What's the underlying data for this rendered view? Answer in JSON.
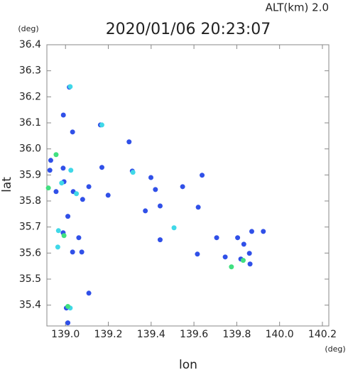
{
  "chart_data": {
    "type": "scatter",
    "title": "2020/01/06 20:23:07",
    "annotation": "ALT(km)  2.0",
    "x_label": "lon",
    "y_label": "lat",
    "x_unit": "(deg)",
    "y_unit": "(deg)",
    "xlim": [
      138.913,
      140.23
    ],
    "ylim": [
      35.32,
      36.4
    ],
    "xticks": [
      {
        "value": 139.0,
        "label": "139.0"
      },
      139.2,
      139.4,
      139.6,
      139.8,
      {
        "value": 140.0,
        "label": "140.0"
      },
      140.2
    ],
    "yticks": [
      36.4,
      36.3,
      36.2,
      36.1,
      {
        "value": 36.0,
        "label": "36.0"
      },
      35.9,
      35.8,
      35.7,
      35.6,
      35.5,
      35.4
    ],
    "series": [
      {
        "color": "#3050e8",
        "x": [
          139.018,
          138.99,
          139.033,
          139.163,
          139.297,
          139.17,
          139.312,
          138.989,
          138.931,
          138.927,
          138.993,
          139.036,
          139.08,
          139.109,
          139.199,
          139.399,
          139.42,
          139.547,
          139.638,
          139.62,
          139.373,
          139.442,
          139.442,
          139.706,
          139.616,
          139.804,
          139.833,
          139.87,
          139.924,
          139.859,
          139.862,
          139.819,
          139.746,
          139.011,
          138.989,
          139.062,
          139.033,
          139.076,
          139.109,
          139.004,
          139.011,
          138.956
        ],
        "y": [
          36.237,
          36.13,
          36.065,
          36.092,
          36.027,
          35.929,
          35.915,
          35.926,
          35.956,
          35.918,
          35.874,
          35.836,
          35.806,
          35.855,
          35.822,
          35.89,
          35.844,
          35.855,
          35.899,
          35.776,
          35.762,
          35.781,
          35.651,
          35.659,
          35.596,
          35.659,
          35.634,
          35.683,
          35.683,
          35.599,
          35.558,
          35.577,
          35.585,
          35.741,
          35.678,
          35.659,
          35.604,
          35.604,
          35.446,
          35.389,
          35.332,
          35.836
        ]
      },
      {
        "color": "#40d8e8",
        "x": [
          139.022,
          139.025,
          138.982,
          139.051,
          139.17,
          139.507,
          138.964,
          139.022,
          139.315,
          138.967
        ],
        "y": [
          36.239,
          35.918,
          35.869,
          35.828,
          36.092,
          35.697,
          35.623,
          35.389,
          35.91,
          35.686
        ]
      },
      {
        "color": "#40e080",
        "x": [
          138.956,
          138.92,
          138.993,
          139.011,
          139.775,
          139.83
        ],
        "y": [
          35.978,
          35.85,
          35.667,
          35.395,
          35.547,
          35.572
        ]
      }
    ]
  }
}
